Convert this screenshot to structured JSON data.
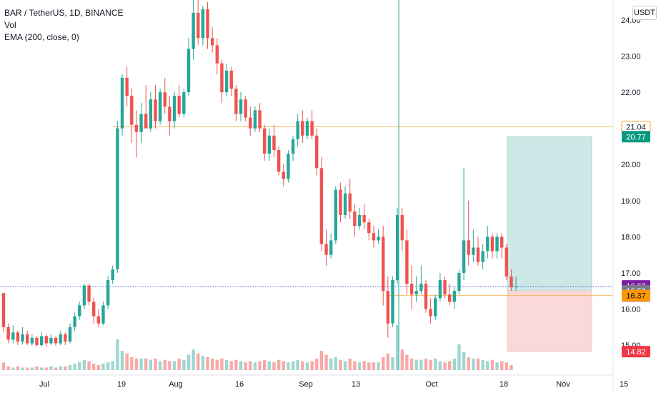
{
  "legend": {
    "symbol": "BAR / TetherUS, 1D, BINANCE",
    "volume": "Vol",
    "ema": "EMA (200, close, 0)"
  },
  "currency_button": "USDT",
  "colors": {
    "up": "#26a69a",
    "down": "#ef5350",
    "up_volume": "#9fd6d0",
    "down_volume": "#f7a9a7",
    "price_line": "#1e2ad4",
    "level_line": "#f5a623",
    "profit_zone": "#cde8e6",
    "loss_zone": "#fbd9d9",
    "badge_last": "#7b1fa2",
    "badge_entry": "#787b86",
    "badge_target": "#089981",
    "badge_orange": "#ff9800",
    "badge_stop": "#f23645"
  },
  "chart_data": {
    "type": "candlestick",
    "title": "BAR / TetherUS, 1D, BINANCE",
    "y_axis": {
      "range": [
        14.7,
        24.3
      ],
      "ticks": [
        "24.00",
        "23.00",
        "22.00",
        "21.00",
        "20.00",
        "19.00",
        "18.00",
        "17.00",
        "16.00",
        "15.00"
      ]
    },
    "x_axis": {
      "ticks": [
        "Jul",
        "19",
        "Aug",
        "16",
        "Sep",
        "13",
        "Oct",
        "18",
        "Nov",
        "15"
      ]
    },
    "series": [
      {
        "name": "BAR / TetherUS",
        "type": "candlestick",
        "ohlc_open": [],
        "ohlc_close": [],
        "note_key": ""
      },
      {
        "name": "Vol",
        "type": "volume"
      }
    ],
    "price_labels": [
      {
        "label": "21.04",
        "value": 21.04,
        "style": "outline"
      },
      {
        "label": "20.77",
        "value": 20.77,
        "style": "target"
      },
      {
        "label": "16.62",
        "value": 16.62,
        "style": "last",
        "countdown": "12:52:30"
      },
      {
        "label": "16.50",
        "value": 16.5,
        "style": "entry"
      },
      {
        "label": "16.37",
        "value": 16.37,
        "style": "orange"
      },
      {
        "label": "14.82",
        "value": 14.82,
        "style": "stop"
      }
    ],
    "horizontal_levels": [
      21.04,
      16.37
    ],
    "last_price": 16.62,
    "position": {
      "entry": 16.5,
      "target": 20.77,
      "stop": 14.82
    },
    "candles": [
      [
        16.44,
        16.44,
        15.35,
        15.5
      ],
      [
        15.5,
        15.6,
        15.05,
        15.15
      ],
      [
        15.15,
        15.55,
        15.05,
        15.35
      ],
      [
        15.35,
        15.4,
        15.0,
        15.1
      ],
      [
        15.1,
        15.5,
        15.02,
        15.3
      ],
      [
        15.3,
        15.4,
        15.0,
        15.05
      ],
      [
        15.05,
        15.3,
        14.98,
        15.2
      ],
      [
        15.2,
        15.25,
        14.95,
        15.0
      ],
      [
        15.0,
        15.35,
        14.95,
        15.25
      ],
      [
        15.25,
        15.3,
        14.95,
        15.05
      ],
      [
        15.05,
        15.3,
        15.0,
        15.2
      ],
      [
        15.2,
        15.25,
        14.98,
        15.05
      ],
      [
        15.05,
        15.4,
        15.0,
        15.3
      ],
      [
        15.3,
        15.35,
        15.0,
        15.1
      ],
      [
        15.1,
        15.6,
        15.05,
        15.5
      ],
      [
        15.5,
        15.9,
        15.4,
        15.8
      ],
      [
        15.8,
        16.2,
        15.7,
        16.1
      ],
      [
        16.1,
        16.7,
        16.0,
        16.65
      ],
      [
        16.65,
        16.7,
        16.1,
        16.2
      ],
      [
        16.2,
        16.3,
        15.6,
        15.8
      ],
      [
        15.8,
        16.0,
        15.5,
        15.6
      ],
      [
        15.6,
        16.2,
        15.55,
        16.1
      ],
      [
        16.1,
        16.9,
        16.0,
        16.8
      ],
      [
        16.8,
        17.2,
        16.7,
        17.1
      ],
      [
        17.1,
        21.2,
        17.0,
        21.0
      ],
      [
        21.0,
        22.5,
        20.8,
        22.4
      ],
      [
        22.4,
        22.7,
        21.6,
        21.9
      ],
      [
        21.9,
        22.1,
        20.6,
        21.1
      ],
      [
        21.1,
        21.5,
        20.2,
        20.9
      ],
      [
        20.9,
        21.7,
        20.6,
        21.4
      ],
      [
        21.4,
        22.2,
        21.0,
        21.0
      ],
      [
        21.0,
        22.0,
        20.9,
        21.8
      ],
      [
        21.8,
        22.2,
        21.0,
        21.2
      ],
      [
        21.2,
        22.1,
        21.1,
        22.0
      ],
      [
        22.0,
        22.4,
        21.4,
        21.6
      ],
      [
        21.6,
        21.9,
        20.8,
        21.2
      ],
      [
        21.2,
        22.0,
        21.0,
        21.9
      ],
      [
        21.9,
        22.2,
        21.3,
        21.4
      ],
      [
        21.4,
        22.1,
        21.3,
        22.0
      ],
      [
        22.0,
        23.5,
        21.9,
        23.2
      ],
      [
        23.2,
        24.6,
        22.9,
        24.2
      ],
      [
        24.2,
        24.8,
        23.3,
        23.5
      ],
      [
        23.5,
        24.4,
        23.3,
        24.3
      ],
      [
        24.3,
        24.5,
        23.2,
        23.5
      ],
      [
        23.5,
        23.8,
        23.1,
        23.3
      ],
      [
        23.3,
        23.5,
        22.5,
        22.8
      ],
      [
        22.8,
        22.9,
        21.7,
        22.0
      ],
      [
        22.0,
        22.8,
        21.9,
        22.6
      ],
      [
        22.6,
        22.7,
        21.9,
        22.1
      ],
      [
        22.1,
        22.2,
        21.2,
        21.4
      ],
      [
        21.4,
        22.0,
        21.2,
        21.8
      ],
      [
        21.8,
        21.9,
        21.2,
        21.3
      ],
      [
        21.3,
        21.6,
        20.8,
        21.0
      ],
      [
        21.0,
        21.6,
        20.9,
        21.5
      ],
      [
        21.5,
        21.7,
        20.9,
        21.0
      ],
      [
        21.0,
        21.1,
        20.1,
        20.3
      ],
      [
        20.3,
        21.0,
        20.1,
        20.8
      ],
      [
        20.8,
        21.1,
        20.2,
        20.4
      ],
      [
        20.4,
        20.5,
        19.7,
        19.8
      ],
      [
        19.8,
        20.0,
        19.4,
        19.6
      ],
      [
        19.6,
        20.4,
        19.5,
        20.3
      ],
      [
        20.3,
        20.8,
        20.1,
        20.7
      ],
      [
        20.7,
        21.4,
        20.5,
        21.2
      ],
      [
        21.2,
        21.5,
        20.6,
        20.8
      ],
      [
        20.8,
        21.3,
        20.7,
        21.2
      ],
      [
        21.2,
        21.5,
        20.7,
        20.8
      ],
      [
        20.8,
        21.0,
        19.7,
        19.9
      ],
      [
        19.9,
        20.2,
        17.6,
        17.8
      ],
      [
        17.8,
        18.2,
        17.2,
        17.5
      ],
      [
        17.5,
        18.1,
        17.4,
        17.9
      ],
      [
        17.9,
        19.4,
        17.8,
        19.3
      ],
      [
        19.3,
        19.5,
        18.4,
        18.6
      ],
      [
        18.6,
        19.4,
        18.5,
        19.2
      ],
      [
        19.2,
        19.6,
        18.5,
        18.7
      ],
      [
        18.7,
        18.9,
        18.0,
        18.3
      ],
      [
        18.3,
        18.8,
        18.2,
        18.6
      ],
      [
        18.6,
        18.9,
        18.2,
        18.4
      ],
      [
        18.4,
        18.5,
        17.9,
        18.1
      ],
      [
        18.1,
        18.3,
        17.7,
        17.9
      ],
      [
        17.9,
        18.2,
        17.8,
        18.0
      ],
      [
        18.0,
        18.3,
        16.1,
        16.5
      ],
      [
        16.5,
        16.9,
        15.2,
        15.6
      ],
      [
        15.6,
        16.9,
        15.5,
        16.8
      ],
      [
        16.8,
        18.8,
        16.7,
        18.6
      ],
      [
        18.6,
        18.8,
        17.6,
        17.9
      ],
      [
        17.9,
        18.2,
        16.4,
        16.7
      ],
      [
        16.7,
        17.2,
        16.0,
        16.4
      ],
      [
        16.4,
        16.9,
        16.2,
        16.5
      ],
      [
        16.5,
        17.2,
        16.4,
        16.7
      ],
      [
        16.7,
        16.8,
        15.9,
        16.0
      ],
      [
        16.0,
        16.3,
        15.6,
        15.8
      ],
      [
        15.8,
        16.4,
        15.7,
        16.3
      ],
      [
        16.3,
        17.0,
        16.2,
        16.8
      ],
      [
        16.8,
        16.9,
        16.3,
        16.4
      ],
      [
        16.4,
        16.7,
        16.1,
        16.2
      ],
      [
        16.2,
        16.6,
        16.0,
        16.5
      ],
      [
        16.5,
        17.1,
        16.4,
        17.0
      ],
      [
        17.0,
        19.9,
        16.8,
        17.9
      ],
      [
        17.9,
        19.0,
        17.2,
        17.5
      ],
      [
        17.5,
        18.2,
        17.3,
        17.7
      ],
      [
        17.7,
        18.0,
        17.2,
        17.3
      ],
      [
        17.3,
        17.8,
        17.1,
        17.6
      ],
      [
        17.6,
        18.3,
        17.4,
        18.0
      ],
      [
        18.0,
        18.1,
        17.4,
        17.6
      ],
      [
        17.6,
        18.1,
        17.4,
        18.0
      ],
      [
        18.0,
        18.1,
        17.4,
        17.7
      ],
      [
        17.7,
        17.8,
        16.8,
        16.9
      ],
      [
        16.9,
        17.1,
        16.5,
        16.6
      ],
      [
        16.6,
        16.9,
        16.5,
        16.62
      ]
    ],
    "volumes": [
      0.6,
      0.3,
      0.2,
      0.3,
      0.2,
      0.2,
      0.2,
      0.3,
      0.2,
      0.2,
      0.3,
      0.2,
      0.3,
      0.3,
      0.4,
      0.5,
      0.6,
      0.8,
      0.7,
      0.5,
      0.4,
      0.5,
      0.6,
      0.7,
      2.4,
      1.5,
      1.3,
      1.0,
      0.9,
      0.9,
      0.9,
      0.8,
      0.9,
      0.7,
      0.8,
      0.7,
      0.7,
      0.9,
      0.8,
      1.2,
      1.6,
      1.3,
      1.1,
      1.0,
      0.9,
      0.8,
      0.9,
      0.8,
      0.7,
      0.8,
      0.7,
      0.6,
      0.7,
      0.6,
      0.7,
      0.8,
      0.7,
      0.6,
      0.8,
      0.7,
      0.6,
      0.7,
      0.8,
      0.7,
      0.6,
      0.7,
      0.9,
      1.5,
      1.2,
      0.9,
      1.0,
      0.8,
      0.7,
      0.9,
      0.7,
      0.6,
      0.7,
      0.6,
      0.6,
      0.6,
      1.0,
      1.3,
      1.0,
      3.5,
      1.6,
      1.2,
      0.9,
      0.8,
      0.8,
      0.9,
      0.8,
      0.9,
      0.7,
      0.6,
      0.7,
      0.9,
      2.0,
      1.4,
      1.0,
      0.9,
      0.9,
      0.8,
      0.7,
      0.8,
      0.6,
      0.7,
      0.6,
      0.4
    ]
  }
}
